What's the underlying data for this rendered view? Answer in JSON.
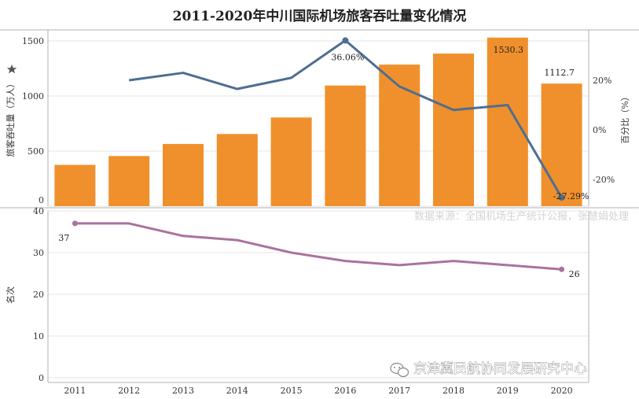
{
  "title": "2011-2020年中川国际机场旅客吞吐量变化情况",
  "source_note": "数据来源：全国机场生产统计公报，张慧娟处理",
  "watermark": "京津冀民航协同发展研究中心",
  "colors": {
    "bar": "#f0902c",
    "growth": "#4e6e91",
    "rank": "#a9739e",
    "grid": "#e6e6e6",
    "axis": "#b0b0b0"
  },
  "chart_data": [
    {
      "type": "bar+line",
      "panel": "top",
      "categories": [
        "2011",
        "2012",
        "2013",
        "2014",
        "2015",
        "2016",
        "2017",
        "2018",
        "2019",
        "2020"
      ],
      "ylabel": "旅客吞吐量（万人）",
      "y2label": "百分比（%）",
      "ylim": [
        0,
        1600
      ],
      "y2lim": [
        -30,
        40
      ],
      "yticks": [
        "0",
        "500",
        "1000",
        "1500"
      ],
      "y2ticks": [
        "-20%",
        "0%",
        "20%"
      ],
      "series": [
        {
          "kind": "bar",
          "values": [
            375,
            455,
            565,
            655,
            805,
            1095,
            1285,
            1385,
            1530.3,
            1112.7
          ]
        },
        {
          "kind": "line",
          "values": [
            null,
            20,
            23,
            16.5,
            21,
            36.06,
            17.5,
            8,
            10,
            -27.29
          ]
        }
      ],
      "data_labels": {
        "1530.3": "1530.3",
        "1112.7": "1112.7",
        "36.06": "36.06%",
        "-27.29": "-27.29%"
      }
    },
    {
      "type": "line",
      "panel": "bottom",
      "categories": [
        "2011",
        "2012",
        "2013",
        "2014",
        "2015",
        "2016",
        "2017",
        "2018",
        "2019",
        "2020"
      ],
      "ylabel": "名次",
      "ylim": [
        0,
        40
      ],
      "yticks": [
        "0",
        "10",
        "20",
        "30",
        "40"
      ],
      "values": [
        37,
        37,
        34,
        33,
        30,
        28,
        27,
        28,
        27,
        26
      ],
      "data_labels": {
        "first": "37",
        "last": "26"
      }
    }
  ],
  "icons": {
    "legend_marker": "star-icon",
    "wechat": "wechat-icon"
  }
}
